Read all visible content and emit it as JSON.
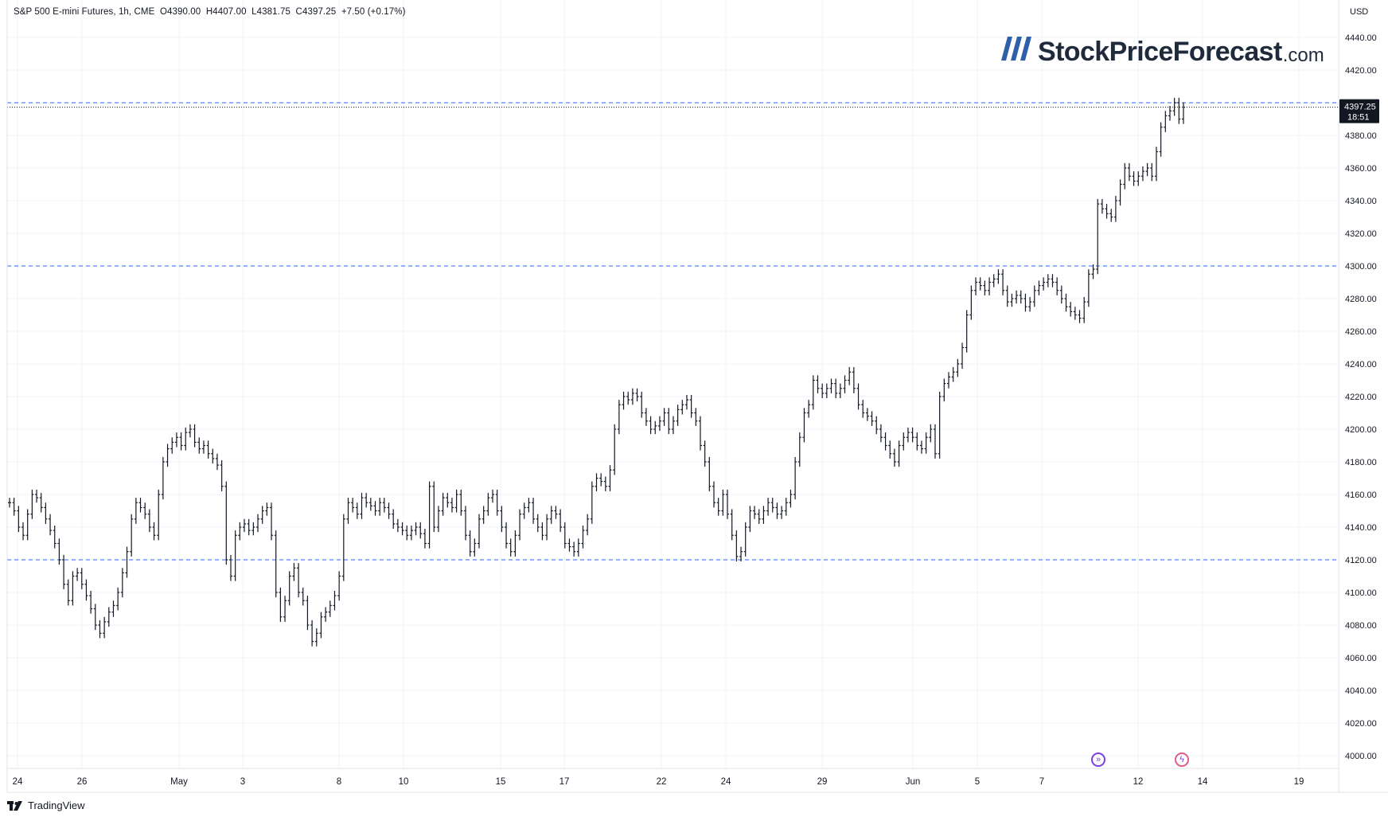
{
  "header": {
    "symbol": "S&P 500 E-mini Futures, 1h, CME",
    "open_label": "O",
    "open": "4390.00",
    "high_label": "H",
    "high": "4407.00",
    "low_label": "L",
    "low": "4381.75",
    "close_label": "C",
    "close": "4397.25",
    "change": "+7.50 (+0.17%)"
  },
  "watermark": {
    "main": "StockPriceForecast",
    "suffix": ".com"
  },
  "footer": {
    "brand": "TradingView"
  },
  "colors": {
    "candle": "#131722",
    "grid": "#f0f3fa",
    "level_line": "#2962ff",
    "price_tag_bg": "#131722",
    "event_icon": "#7b3fe4"
  },
  "icons": [
    "forward-arrows-icon",
    "lightning-icon",
    "tradingview-logo-icon"
  ],
  "chart_data": {
    "type": "line",
    "subtype": "ohlc-bars",
    "title": "S&P 500 E-mini Futures, 1h, CME",
    "currency": "USD",
    "ylim": [
      3990,
      4450
    ],
    "y_ticks": [
      "4440.00",
      "4420.00",
      "4400.00",
      "4380.00",
      "4360.00",
      "4340.00",
      "4320.00",
      "4300.00",
      "4280.00",
      "4260.00",
      "4240.00",
      "4220.00",
      "4200.00",
      "4180.00",
      "4160.00",
      "4140.00",
      "4120.00",
      "4100.00",
      "4080.00",
      "4060.00",
      "4040.00",
      "4020.00",
      "4000.00"
    ],
    "x_ticks": [
      "24",
      "26",
      "May",
      "3",
      "8",
      "10",
      "15",
      "17",
      "22",
      "24",
      "29",
      "Jun",
      "5",
      "7",
      "12",
      "14",
      "19"
    ],
    "grid": true,
    "last_price": "4397.25",
    "countdown": "18:51",
    "horizontal_levels": [
      4400,
      4300,
      4120
    ],
    "series": [
      {
        "values": [
          4155,
          4150,
          4140,
          4135,
          4148,
          4160,
          4158,
          4152,
          4145,
          4138,
          4130,
          4120,
          4105,
          4095,
          4110,
          4112,
          4105,
          4098,
          4090,
          4080,
          4075,
          4082,
          4088,
          4092,
          4100,
          4112,
          4125,
          4145,
          4155,
          4152,
          4148,
          4140,
          4135,
          4160,
          4180,
          4188,
          4192,
          4195,
          4190,
          4198,
          4200,
          4192,
          4188,
          4190,
          4185,
          4182,
          4178,
          4165,
          4120,
          4110,
          4135,
          4140,
          4142,
          4138,
          4140,
          4145,
          4150,
          4152,
          4135,
          4100,
          4085,
          4095,
          4110,
          4115,
          4100,
          4095,
          4080,
          4070,
          4075,
          4085,
          4088,
          4092,
          4098,
          4110,
          4145,
          4155,
          4152,
          4148,
          4158,
          4155,
          4153,
          4150,
          4155,
          4152,
          4148,
          4142,
          4140,
          4138,
          4135,
          4138,
          4140,
          4136,
          4130,
          4165,
          4140,
          4150,
          4158,
          4155,
          4152,
          4160,
          4150,
          4135,
          4125,
          4130,
          4145,
          4150,
          4158,
          4160,
          4150,
          4140,
          4130,
          4125,
          4135,
          4148,
          4152,
          4155,
          4145,
          4140,
          4135,
          4145,
          4150,
          4148,
          4140,
          4130,
          4128,
          4125,
          4130,
          4138,
          4145,
          4165,
          4170,
          4168,
          4165,
          4175,
          4200,
          4215,
          4220,
          4218,
          4222,
          4220,
          4210,
          4205,
          4200,
          4202,
          4205,
          4210,
          4200,
          4205,
          4212,
          4215,
          4218,
          4210,
          4205,
          4190,
          4180,
          4165,
          4155,
          4150,
          4160,
          4148,
          4135,
          4122,
          4125,
          4140,
          4150,
          4148,
          4145,
          4150,
          4155,
          4152,
          4148,
          4150,
          4155,
          4160,
          4180,
          4195,
          4210,
          4215,
          4230,
          4225,
          4222,
          4225,
          4228,
          4222,
          4225,
          4230,
          4235,
          4225,
          4215,
          4210,
          4208,
          4205,
          4200,
          4195,
          4190,
          4185,
          4180,
          4190,
          4195,
          4198,
          4195,
          4190,
          4188,
          4195,
          4200,
          4185,
          4220,
          4228,
          4232,
          4235,
          4240,
          4250,
          4270,
          4285,
          4290,
          4288,
          4285,
          4290,
          4292,
          4295,
          4285,
          4278,
          4280,
          4282,
          4280,
          4275,
          4278,
          4285,
          4288,
          4290,
          4292,
          4290,
          4285,
          4280,
          4275,
          4272,
          4270,
          4268,
          4278,
          4295,
          4298,
          4338,
          4335,
          4332,
          4330,
          4340,
          4350,
          4360,
          4355,
          4352,
          4355,
          4358,
          4360,
          4355,
          4370,
          4385,
          4392,
          4395,
          4400,
          4390,
          4397.25
        ]
      }
    ]
  }
}
